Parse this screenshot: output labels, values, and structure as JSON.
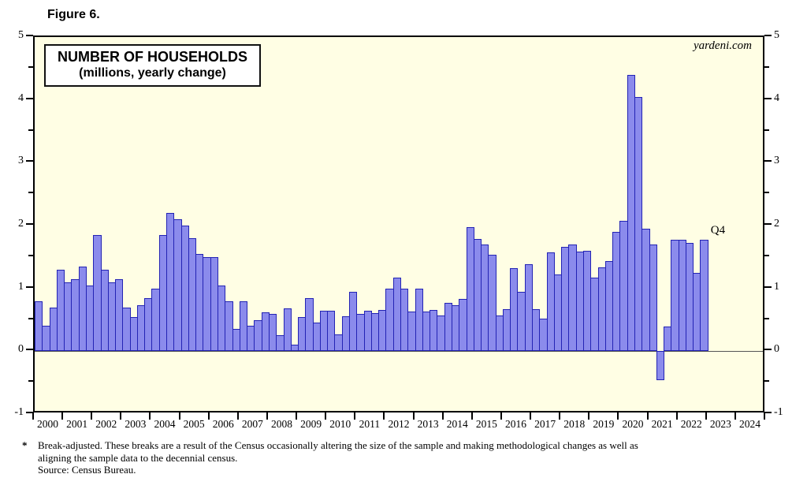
{
  "figure_label": "Figure 6.",
  "title": {
    "line1": "NUMBER OF HOUSEHOLDS",
    "line2": "(millions, yearly change)"
  },
  "watermark": "yardeni.com",
  "annotation_last_point": "Q4",
  "footnote": {
    "marker": "*",
    "line1": "Break-adjusted. These breaks are a result of the Census occasionally altering the size of the sample and making methodological changes as well as",
    "line2": "aligning the sample data to the decennial census.",
    "source": "Source: Census Bureau."
  },
  "colors": {
    "plot_bg": "#fffee4",
    "bar_fill": "#8b8bec",
    "bar_border": "#2323b4",
    "axis": "#000000",
    "zero_line": "#555555"
  },
  "chart_data": {
    "type": "bar",
    "title": "NUMBER OF HOUSEHOLDS (millions, yearly change)",
    "frequency": "quarterly",
    "series_start": "2000Q1",
    "series_end": "2022Q4",
    "ylim": [
      -1,
      5
    ],
    "yticks": [
      -1,
      0,
      1,
      2,
      3,
      4,
      5
    ],
    "yticks_minor": [
      -0.5,
      0.5,
      1.5,
      2.5,
      3.5,
      4.5
    ],
    "grid": false,
    "x_year_labels": [
      "2000",
      "2001",
      "2002",
      "2003",
      "2004",
      "2005",
      "2006",
      "2007",
      "2008",
      "2009",
      "2010",
      "2011",
      "2012",
      "2013",
      "2014",
      "2015",
      "2016",
      "2017",
      "2018",
      "2019",
      "2020",
      "2021",
      "2022",
      "2023",
      "2024"
    ],
    "x_axis_span_years": 25,
    "values": [
      0.8,
      0.4,
      0.7,
      1.3,
      1.1,
      1.15,
      1.35,
      1.05,
      1.85,
      1.3,
      1.1,
      1.15,
      0.7,
      0.55,
      0.73,
      0.85,
      1.0,
      1.85,
      2.2,
      2.1,
      2.0,
      1.8,
      1.55,
      1.5,
      1.5,
      1.05,
      0.8,
      0.35,
      0.8,
      0.4,
      0.5,
      0.62,
      0.6,
      0.25,
      0.68,
      0.1,
      0.55,
      0.85,
      0.45,
      0.65,
      0.64,
      0.27,
      0.56,
      0.95,
      0.6,
      0.65,
      0.61,
      0.66,
      1.0,
      1.17,
      1.0,
      0.63,
      1.0,
      0.63,
      0.66,
      0.57,
      0.77,
      0.73,
      0.83,
      1.97,
      1.79,
      1.7,
      1.53,
      0.57,
      0.67,
      1.32,
      0.95,
      1.38,
      0.67,
      0.52,
      1.57,
      1.22,
      1.66,
      1.7,
      1.58,
      1.6,
      1.17,
      1.34,
      1.43,
      1.9,
      2.08,
      4.4,
      4.05,
      1.95,
      1.7,
      -0.46,
      0.39,
      1.78,
      1.78,
      1.72,
      1.25,
      1.78
    ]
  }
}
